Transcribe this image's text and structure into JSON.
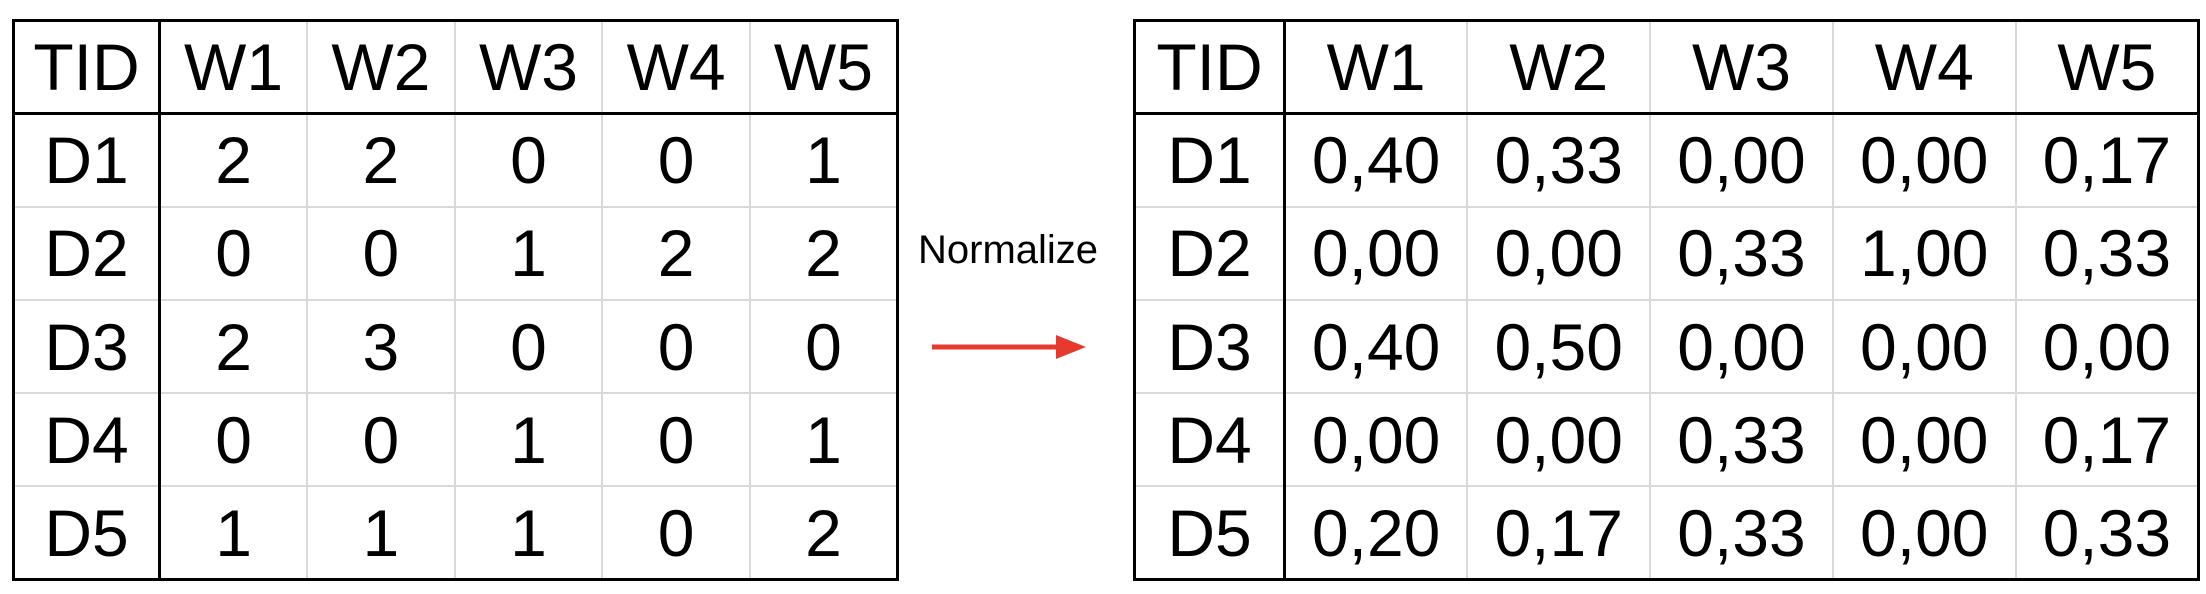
{
  "left_table": {
    "header": [
      "TID",
      "W1",
      "W2",
      "W3",
      "W4",
      "W5"
    ],
    "rows": [
      [
        "D1",
        "2",
        "2",
        "0",
        "0",
        "1"
      ],
      [
        "D2",
        "0",
        "0",
        "1",
        "2",
        "2"
      ],
      [
        "D3",
        "2",
        "3",
        "0",
        "0",
        "0"
      ],
      [
        "D4",
        "0",
        "0",
        "1",
        "0",
        "1"
      ],
      [
        "D5",
        "1",
        "1",
        "1",
        "0",
        "2"
      ]
    ]
  },
  "transform": {
    "label": "Normalize",
    "arrow_color": "#e8392e"
  },
  "right_table": {
    "header": [
      "TID",
      "W1",
      "W2",
      "W3",
      "W4",
      "W5"
    ],
    "rows": [
      [
        "D1",
        "0,40",
        "0,33",
        "0,00",
        "0,00",
        "0,17"
      ],
      [
        "D2",
        "0,00",
        "0,00",
        "0,33",
        "1,00",
        "0,33"
      ],
      [
        "D3",
        "0,40",
        "0,50",
        "0,00",
        "0,00",
        "0,00"
      ],
      [
        "D4",
        "0,00",
        "0,00",
        "0,33",
        "0,00",
        "0,17"
      ],
      [
        "D5",
        "0,20",
        "0,17",
        "0,33",
        "0,00",
        "0,33"
      ]
    ]
  },
  "colors": {
    "border": "#000000",
    "inner_grid": "#d9d9d9",
    "text": "#000000"
  }
}
